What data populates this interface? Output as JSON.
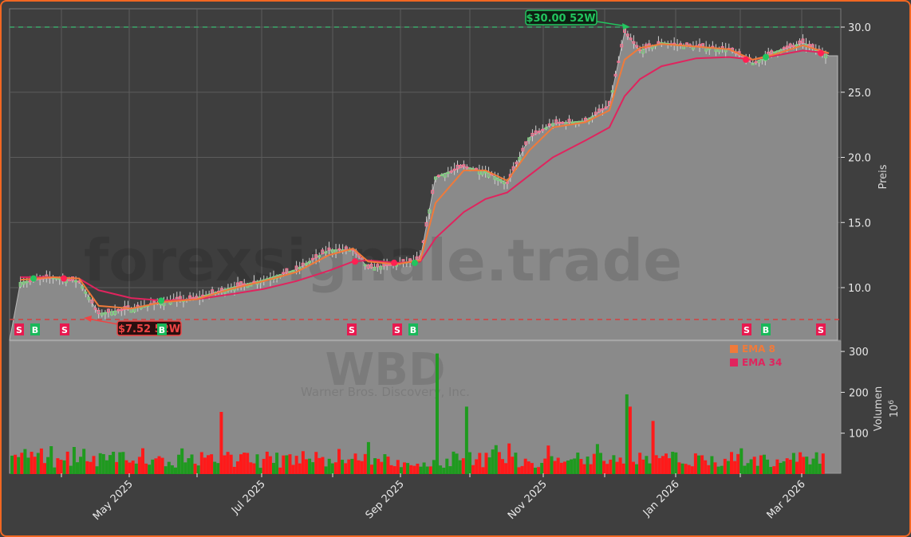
{
  "chart_data": {
    "type": "candlestick",
    "ticker": "WBD",
    "company": "Warner Bros. Discovery, Inc.",
    "watermark": "forexsignale.trade",
    "panels": [
      {
        "name": "price",
        "ylabel": "Preis",
        "ylim": [
          7.0,
          31.2
        ],
        "yticks": [
          10.0,
          15.0,
          20.0,
          25.0,
          30.0
        ],
        "ytick_labels": [
          "10.0",
          "15.0",
          "20.0",
          "25.0",
          "30.0"
        ],
        "grid": true
      },
      {
        "name": "volume",
        "ylabel": "Volumen",
        "yscale_label": "10^6",
        "ylim": [
          0,
          315
        ],
        "yticks": [
          100,
          200,
          300
        ],
        "ytick_labels": [
          "100",
          "200",
          "300"
        ]
      }
    ],
    "x_tick_labels": [
      "May 2025",
      "Jul 2025",
      "Sep 2025",
      "Nov 2025",
      "Jan 2026",
      "Mar 2026"
    ],
    "annotations": {
      "high_52w": {
        "label": "$30.00 52W",
        "value": 30.0,
        "color": "#22c55e"
      },
      "low_52w": {
        "label": "$7.52 52W",
        "value": 7.52,
        "color": "#ef4444"
      }
    },
    "legend": [
      {
        "label": "EMA 8",
        "color": "#f07a3a"
      },
      {
        "label": "EMA 34",
        "color": "#e0245e"
      }
    ],
    "signals": [
      {
        "type": "S",
        "date_approx": "2025-03-early"
      },
      {
        "type": "B",
        "date_approx": "2025-03-mid"
      },
      {
        "type": "S",
        "date_approx": "2025-04-early"
      },
      {
        "type": "B",
        "date_approx": "2025-05-mid"
      },
      {
        "type": "S",
        "date_approx": "2025-08-mid"
      },
      {
        "type": "S",
        "date_approx": "2025-08-end"
      },
      {
        "type": "B",
        "date_approx": "2025-09-early"
      },
      {
        "type": "S",
        "date_approx": "2026-02-early"
      },
      {
        "type": "B",
        "date_approx": "2026-02-mid"
      },
      {
        "type": "S",
        "date_approx": "2026-03-mid"
      }
    ],
    "price_close_approx": {
      "x_dates": [
        "2025-03-05",
        "2025-03-20",
        "2025-04-01",
        "2025-04-10",
        "2025-04-25",
        "2025-05-10",
        "2025-05-25",
        "2025-06-10",
        "2025-06-25",
        "2025-07-10",
        "2025-07-25",
        "2025-08-05",
        "2025-08-12",
        "2025-08-25",
        "2025-09-05",
        "2025-09-12",
        "2025-09-25",
        "2025-10-05",
        "2025-10-15",
        "2025-10-25",
        "2025-11-05",
        "2025-11-20",
        "2025-12-01",
        "2025-12-08",
        "2025-12-15",
        "2025-12-25",
        "2026-01-10",
        "2026-01-25",
        "2026-02-05",
        "2026-02-15",
        "2026-02-28",
        "2026-03-12"
      ],
      "values": [
        10.4,
        10.8,
        10.5,
        8.0,
        8.4,
        8.9,
        9.2,
        10.0,
        10.6,
        11.4,
        12.9,
        12.9,
        11.5,
        11.8,
        12.2,
        18.5,
        19.3,
        18.9,
        18.0,
        21.5,
        22.6,
        22.8,
        24.0,
        29.6,
        28.2,
        28.8,
        28.5,
        28.3,
        27.2,
        28.1,
        28.8,
        27.8
      ]
    },
    "ema8_approx": [
      10.6,
      10.8,
      10.7,
      8.6,
      8.4,
      8.9,
      9.1,
      9.9,
      10.5,
      11.2,
      12.5,
      13.0,
      12.0,
      11.8,
      12.1,
      16.5,
      19.0,
      19.0,
      18.2,
      20.5,
      22.3,
      22.7,
      23.6,
      27.5,
      28.4,
      28.7,
      28.5,
      28.3,
      27.5,
      27.9,
      28.6,
      28.0
    ],
    "ema34_approx": [
      10.8,
      10.8,
      10.7,
      9.8,
      9.2,
      9.0,
      9.1,
      9.5,
      9.9,
      10.5,
      11.3,
      12.0,
      12.1,
      11.9,
      12.0,
      13.8,
      15.8,
      16.8,
      17.3,
      18.6,
      20.0,
      21.3,
      22.3,
      24.7,
      26.0,
      27.0,
      27.6,
      27.7,
      27.5,
      27.8,
      28.2,
      28.0
    ],
    "volume_millions_approx": {
      "notable_peaks": [
        {
          "date_approx": "2025-06-05",
          "value": 152,
          "color": "red"
        },
        {
          "date_approx": "2025-09-12",
          "value": 295,
          "color": "green"
        },
        {
          "date_approx": "2025-09-25",
          "value": 165,
          "color": "green"
        },
        {
          "date_approx": "2025-12-08",
          "value": 195,
          "color": "green"
        },
        {
          "date_approx": "2025-12-10",
          "value": 165,
          "color": "red"
        },
        {
          "date_approx": "2025-12-20",
          "value": 130,
          "color": "red"
        }
      ],
      "typical_range": [
        15,
        80
      ]
    }
  },
  "ui": {
    "price_axis_title": "Preis",
    "volume_axis_title": "Volumen",
    "volume_scale": "10",
    "volume_scale_exp": "6",
    "high_label": "$30.00 52W",
    "low_label": "$7.52 52W",
    "legend_ema8": "EMA 8",
    "legend_ema34": "EMA 34",
    "watermark": "forexsignale.trade",
    "ticker": "WBD",
    "company": "Warner Bros. Discovery, Inc.",
    "price_ticks": [
      "30.0",
      "25.0",
      "20.0",
      "15.0",
      "10.0"
    ],
    "volume_ticks": [
      "300",
      "200",
      "100"
    ],
    "x_ticks": [
      "May 2025",
      "Jul 2025",
      "Sep 2025",
      "Nov 2025",
      "Jan 2026",
      "Mar 2026"
    ],
    "signal_S": "S",
    "signal_B": "B"
  }
}
